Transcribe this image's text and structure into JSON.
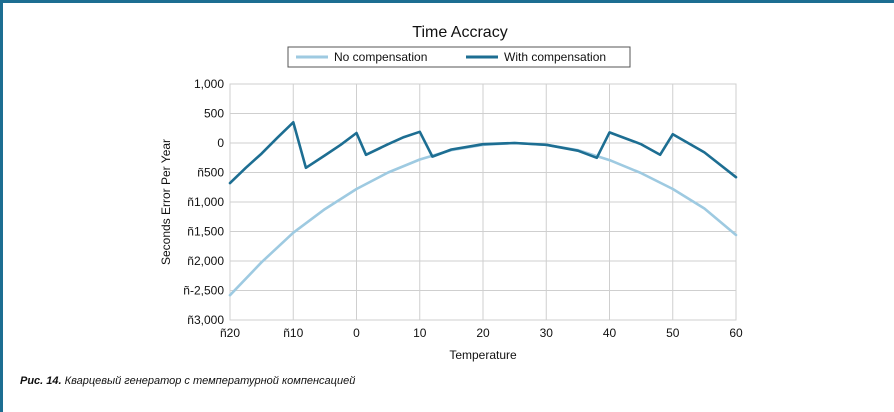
{
  "caption": {
    "prefix": "Рис. 14.",
    "text": " Кварцевый генератор с температурной компенсацией"
  },
  "chart_data": {
    "type": "line",
    "title": "Time Accracy",
    "xlabel": "Temperature",
    "ylabel": "Seconds Error Per Year",
    "xlim": [
      -20,
      60
    ],
    "ylim": [
      -3000,
      1000
    ],
    "x_ticks": [
      -20,
      -10,
      0,
      10,
      20,
      30,
      40,
      50,
      60
    ],
    "x_tick_labels": [
      "ñ20",
      "ñ10",
      "0",
      "10",
      "20",
      "30",
      "40",
      "50",
      "60"
    ],
    "y_ticks": [
      1000,
      500,
      0,
      -500,
      -1000,
      -1500,
      -2000,
      -2500,
      -3000
    ],
    "y_tick_labels": [
      "1,000",
      "500",
      "0",
      "ñ500",
      "ñ1,000",
      "ñ1,500",
      "ñ2,000",
      "ñ-2,500",
      "ñ3,000"
    ],
    "grid": true,
    "legend_position": "top",
    "series": [
      {
        "name": "No compensation",
        "color": "#9ecae1",
        "x": [
          -20,
          -15,
          -10,
          -5,
          0,
          5,
          10,
          15,
          20,
          25,
          30,
          35,
          40,
          45,
          50,
          55,
          60
        ],
        "y": [
          -2580,
          -2020,
          -1520,
          -1120,
          -780,
          -500,
          -280,
          -120,
          -30,
          0,
          -30,
          -120,
          -290,
          -510,
          -780,
          -1110,
          -1560
        ]
      },
      {
        "name": "With compensation",
        "color": "#1d6e92",
        "x": [
          -20,
          -17.5,
          -15,
          -12.5,
          -10,
          -8,
          -5,
          -2.5,
          0,
          1.5,
          5,
          7.5,
          10,
          12,
          15,
          20,
          25,
          30,
          35,
          38,
          40,
          43,
          45,
          48,
          50,
          55,
          60
        ],
        "y": [
          -680,
          -420,
          -180,
          90,
          350,
          -420,
          -210,
          -30,
          170,
          -200,
          -20,
          100,
          190,
          -230,
          -110,
          -20,
          0,
          -30,
          -130,
          -250,
          180,
          60,
          -20,
          -200,
          150,
          -160,
          -580
        ]
      }
    ]
  }
}
